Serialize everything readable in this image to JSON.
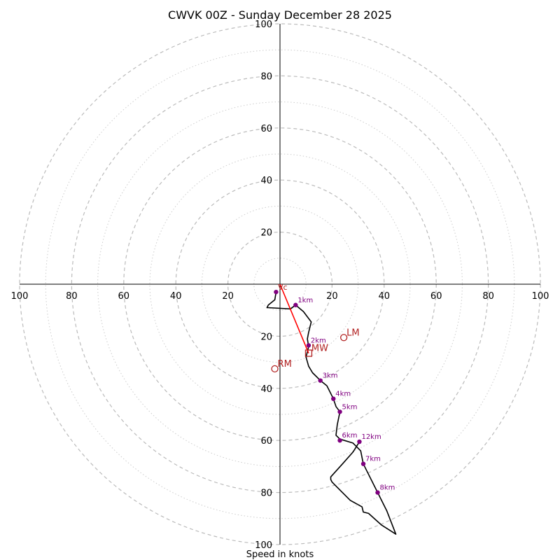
{
  "chart_data": {
    "type": "hodograph",
    "title": "CWVK 00Z - Sunday December 28 2025",
    "xlabel": "Speed in knots",
    "max_speed": 100,
    "ring_step": 20,
    "tick_labels": {
      "left": [
        "100",
        "80",
        "60",
        "40",
        "20"
      ],
      "right": [
        "20",
        "40",
        "60",
        "80",
        "100"
      ],
      "up": [
        "20",
        "40",
        "60",
        "80",
        "100"
      ],
      "down": [
        "20",
        "40",
        "60",
        "80",
        "100"
      ]
    },
    "colors": {
      "trace": "#000000",
      "height_points": "#800080",
      "motion": "#b22222",
      "shear_vector": "#ff0000",
      "grid_major": "#bbbbbb",
      "grid_minor": "#cccccc"
    },
    "trace": [
      [
        -1.5,
        -3
      ],
      [
        -2,
        -6
      ],
      [
        -4.5,
        -8
      ],
      [
        -5,
        -9
      ],
      [
        -4.5,
        -9
      ],
      [
        4,
        -9.5
      ],
      [
        6,
        -8
      ],
      [
        9,
        -10.5
      ],
      [
        12,
        -14.5
      ],
      [
        11,
        -18.5
      ],
      [
        10.5,
        -21
      ],
      [
        11,
        -24
      ],
      [
        10,
        -28
      ],
      [
        11,
        -31.5
      ],
      [
        12.5,
        -34
      ],
      [
        15.5,
        -37
      ],
      [
        18,
        -39
      ],
      [
        20.5,
        -44
      ],
      [
        21.5,
        -47
      ],
      [
        23,
        -49
      ],
      [
        22,
        -54
      ],
      [
        21.5,
        -58
      ],
      [
        23,
        -59.5
      ],
      [
        28,
        -61
      ],
      [
        31,
        -64
      ],
      [
        32,
        -69
      ],
      [
        37.5,
        -80
      ],
      [
        41,
        -87
      ],
      [
        44.5,
        -96
      ],
      [
        39,
        -92.5
      ],
      [
        34,
        -88
      ],
      [
        32,
        -87.5
      ],
      [
        31.5,
        -85.5
      ],
      [
        27,
        -83
      ],
      [
        22,
        -78
      ],
      [
        20,
        -76
      ],
      [
        19.5,
        -75
      ],
      [
        19.5,
        -74
      ],
      [
        24,
        -69
      ],
      [
        28,
        -64.5
      ],
      [
        30.5,
        -60.5
      ]
    ],
    "height_points": [
      {
        "label": "1km",
        "u": 6,
        "v": -8
      },
      {
        "label": "2km",
        "u": 11,
        "v": -23.5
      },
      {
        "label": "3km",
        "u": 15.5,
        "v": -37
      },
      {
        "label": "4km",
        "u": 20.5,
        "v": -44
      },
      {
        "label": "5km",
        "u": 23,
        "v": -49
      },
      {
        "label": "6km",
        "u": 23,
        "v": -60
      },
      {
        "label": "7km",
        "u": 32,
        "v": -69
      },
      {
        "label": "8km",
        "u": 37.5,
        "v": -80
      },
      {
        "label": "12km",
        "u": 30.5,
        "v": -60.5
      },
      {
        "label": "",
        "u": -1.5,
        "v": -3
      }
    ],
    "storm_motion": [
      {
        "label": "LM",
        "u": 24.5,
        "v": -20.5,
        "marker": "circle"
      },
      {
        "label": "RM",
        "u": -2,
        "v": -32.5,
        "marker": "circle"
      },
      {
        "label": "MW",
        "u": 11,
        "v": -26.5,
        "marker": "square"
      },
      {
        "label": "Vc",
        "u": 0,
        "v": 0,
        "marker": "none"
      }
    ],
    "shear_vector": {
      "from": [
        0,
        0
      ],
      "to": [
        11,
        -26.5
      ]
    }
  }
}
